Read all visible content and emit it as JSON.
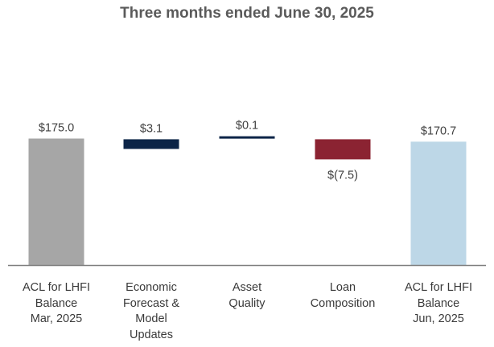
{
  "chart_data": {
    "type": "bar",
    "subtype": "waterfall",
    "title": "Three months ended June 30, 2025",
    "categories": [
      "ACL for LHFI\nBalance\nMar, 2025",
      "Economic\nForecast &\nModel\nUpdates",
      "Asset\nQuality",
      "Loan\nComposition",
      "ACL for LHFI\nBalance\nJun, 2025"
    ],
    "bars": [
      {
        "kind": "total",
        "value": 175.0,
        "label": "$175.0",
        "color": "#a6a6a6"
      },
      {
        "kind": "delta",
        "value": 3.1,
        "label": "$3.1",
        "color": "#0b2447"
      },
      {
        "kind": "delta",
        "value": 0.1,
        "label": "$0.1",
        "color": "#0b2447"
      },
      {
        "kind": "delta",
        "value": -7.5,
        "label": "$(7.5)",
        "color": "#8b2332"
      },
      {
        "kind": "total",
        "value": 170.7,
        "label": "$170.7",
        "color": "#bdd7e7"
      }
    ],
    "xlabel": "",
    "ylabel": "",
    "grid": false
  }
}
